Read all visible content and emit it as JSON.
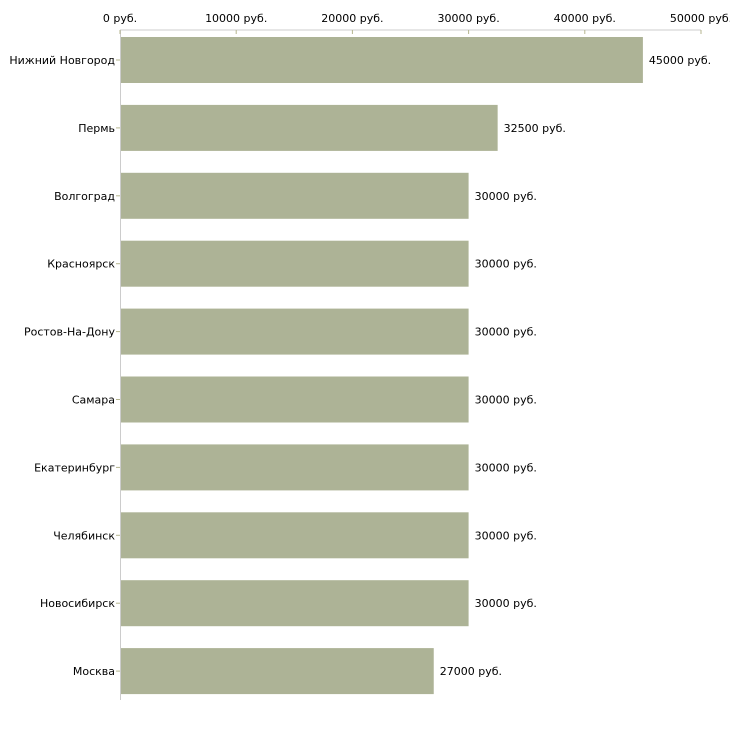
{
  "chart_data": {
    "type": "bar",
    "orientation": "horizontal",
    "title": "",
    "xlabel": "",
    "ylabel": "",
    "xlim": [
      0,
      50000
    ],
    "unit_suffix": " руб.",
    "x_ticks": [
      0,
      10000,
      20000,
      30000,
      40000,
      50000
    ],
    "x_tick_labels": [
      "0 руб.",
      "10000 руб.",
      "20000 руб.",
      "30000 руб.",
      "40000 руб.",
      "50000 руб."
    ],
    "axis_position": "top",
    "grid": false,
    "categories": [
      "Нижний Новгород",
      "Пермь",
      "Волгоград",
      "Красноярск",
      "Ростов-На-Дону",
      "Самара",
      "Екатеринбург",
      "Челябинск",
      "Новосибирск",
      "Москва"
    ],
    "values": [
      45000,
      32500,
      30000,
      30000,
      30000,
      30000,
      30000,
      30000,
      30000,
      27000
    ],
    "data_labels": [
      "45000 руб.",
      "32500 руб.",
      "30000 руб.",
      "30000 руб.",
      "30000 руб.",
      "30000 руб.",
      "30000 руб.",
      "30000 руб.",
      "30000 руб.",
      "27000 руб."
    ],
    "bar_color": "#adb396",
    "axis_color": "#cccccc",
    "tick_color": "#b5b58f"
  }
}
